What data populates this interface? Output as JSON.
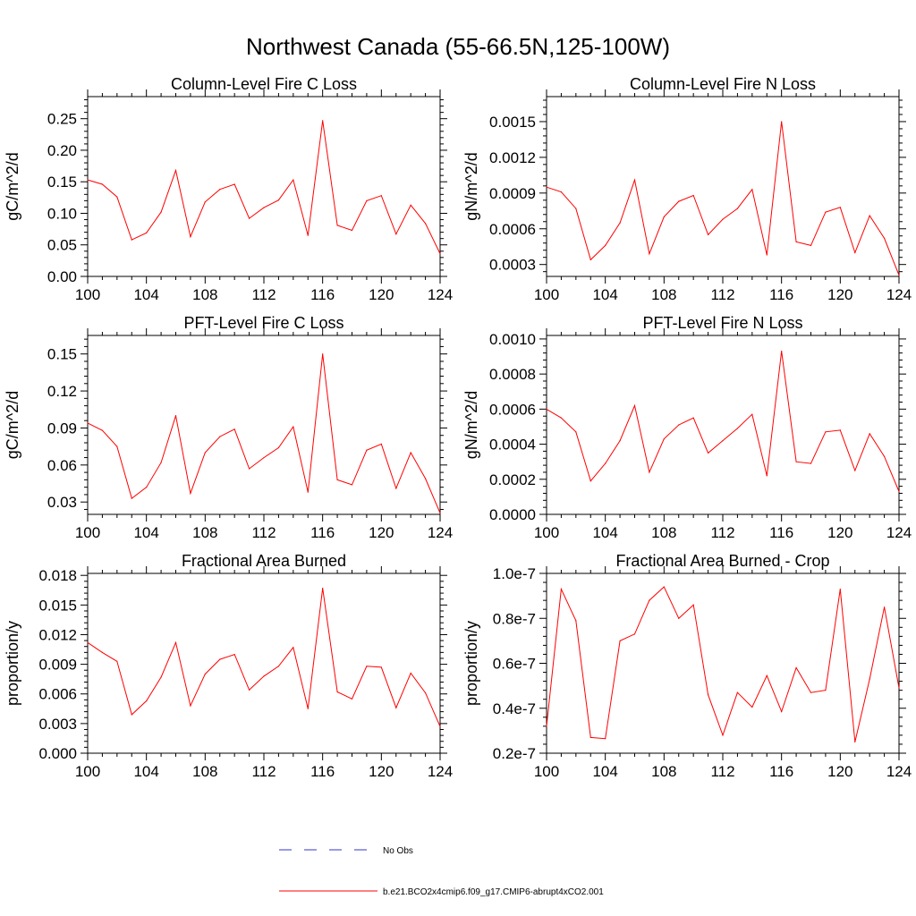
{
  "figure": {
    "title": "Northwest Canada (55-66.5N,125-100W)",
    "legend": [
      {
        "label": "No Obs",
        "color": "#3333cc",
        "style": "dashed"
      },
      {
        "label": "b.e21.BCO2x4cmip6.f09_g17.CMIP6-abrupt4xCO2.001",
        "color": "#ff0000",
        "style": "solid"
      }
    ]
  },
  "chart_data": [
    {
      "type": "line",
      "title": "Column-Level Fire C Loss",
      "ylabel": "gC/m^2/d",
      "xlim": [
        100,
        124
      ],
      "ylim": [
        0,
        0.285
      ],
      "x_ticks": [
        "100",
        "104",
        "108",
        "112",
        "116",
        "120",
        "124"
      ],
      "y_ticks": [
        "0.00",
        "0.05",
        "0.10",
        "0.15",
        "0.20",
        "0.25"
      ],
      "y_tick_values": [
        0,
        0.05,
        0.1,
        0.15,
        0.2,
        0.25
      ],
      "x": [
        100,
        101,
        102,
        103,
        104,
        105,
        106,
        107,
        108,
        109,
        110,
        111,
        112,
        113,
        114,
        115,
        116,
        117,
        118,
        119,
        120,
        121,
        122,
        123,
        124
      ],
      "series": [
        {
          "name": "b.e21.BCO2x4cmip6.f09_g17.CMIP6-abrupt4xCO2.001",
          "color": "#ff0000",
          "values": [
            0.153,
            0.146,
            0.126,
            0.058,
            0.069,
            0.102,
            0.168,
            0.063,
            0.118,
            0.138,
            0.146,
            0.092,
            0.109,
            0.121,
            0.153,
            0.065,
            0.247,
            0.081,
            0.073,
            0.12,
            0.128,
            0.067,
            0.113,
            0.084,
            0.036
          ]
        }
      ]
    },
    {
      "type": "line",
      "title": "Column-Level Fire N Loss",
      "ylabel": "gN/m^2/d",
      "xlim": [
        100,
        124
      ],
      "ylim": [
        0.0002,
        0.00171
      ],
      "x_ticks": [
        "100",
        "104",
        "108",
        "112",
        "116",
        "120",
        "124"
      ],
      "y_ticks": [
        "0.0003",
        "0.0006",
        "0.0009",
        "0.0012",
        "0.0015"
      ],
      "y_tick_values": [
        0.0003,
        0.0006,
        0.0009,
        0.0012,
        0.0015
      ],
      "x": [
        100,
        101,
        102,
        103,
        104,
        105,
        106,
        107,
        108,
        109,
        110,
        111,
        112,
        113,
        114,
        115,
        116,
        117,
        118,
        119,
        120,
        121,
        122,
        123,
        124
      ],
      "series": [
        {
          "name": "b.e21.BCO2x4cmip6.f09_g17.CMIP6-abrupt4xCO2.001",
          "color": "#ff0000",
          "values": [
            0.00095,
            0.00091,
            0.00077,
            0.00034,
            0.00046,
            0.00065,
            0.00101,
            0.00039,
            0.0007,
            0.00083,
            0.00088,
            0.00055,
            0.00068,
            0.00077,
            0.00093,
            0.00038,
            0.0015,
            0.00049,
            0.00046,
            0.00074,
            0.00078,
            0.0004,
            0.00071,
            0.00052,
            0.00021
          ]
        }
      ]
    },
    {
      "type": "line",
      "title": "PFT-Level Fire C Loss",
      "ylabel": "gC/m^2/d",
      "xlim": [
        100,
        124
      ],
      "ylim": [
        0.02,
        0.165
      ],
      "x_ticks": [
        "100",
        "104",
        "108",
        "112",
        "116",
        "120",
        "124"
      ],
      "y_ticks": [
        "0.03",
        "0.06",
        "0.09",
        "0.12",
        "0.15"
      ],
      "y_tick_values": [
        0.03,
        0.06,
        0.09,
        0.12,
        0.15
      ],
      "x": [
        100,
        101,
        102,
        103,
        104,
        105,
        106,
        107,
        108,
        109,
        110,
        111,
        112,
        113,
        114,
        115,
        116,
        117,
        118,
        119,
        120,
        121,
        122,
        123,
        124
      ],
      "series": [
        {
          "name": "b.e21.BCO2x4cmip6.f09_g17.CMIP6-abrupt4xCO2.001",
          "color": "#ff0000",
          "values": [
            0.094,
            0.088,
            0.075,
            0.033,
            0.042,
            0.062,
            0.1,
            0.037,
            0.07,
            0.083,
            0.089,
            0.057,
            0.066,
            0.074,
            0.091,
            0.038,
            0.15,
            0.048,
            0.044,
            0.072,
            0.077,
            0.041,
            0.07,
            0.049,
            0.021
          ]
        }
      ]
    },
    {
      "type": "line",
      "title": "PFT-Level Fire N Loss",
      "ylabel": "gN/m^2/d",
      "xlim": [
        100,
        124
      ],
      "ylim": [
        0,
        0.00102
      ],
      "x_ticks": [
        "100",
        "104",
        "108",
        "112",
        "116",
        "120",
        "124"
      ],
      "y_ticks": [
        "0.0000",
        "0.0002",
        "0.0004",
        "0.0006",
        "0.0008",
        "0.0010"
      ],
      "y_tick_values": [
        0,
        0.0002,
        0.0004,
        0.0006,
        0.0008,
        0.001
      ],
      "x": [
        100,
        101,
        102,
        103,
        104,
        105,
        106,
        107,
        108,
        109,
        110,
        111,
        112,
        113,
        114,
        115,
        116,
        117,
        118,
        119,
        120,
        121,
        122,
        123,
        124
      ],
      "series": [
        {
          "name": "b.e21.BCO2x4cmip6.f09_g17.CMIP6-abrupt4xCO2.001",
          "color": "#ff0000",
          "values": [
            0.0006,
            0.00055,
            0.00047,
            0.00019,
            0.00029,
            0.00042,
            0.00062,
            0.00024,
            0.00043,
            0.00051,
            0.00055,
            0.00035,
            0.00042,
            0.00049,
            0.00057,
            0.00022,
            0.00093,
            0.0003,
            0.00029,
            0.00047,
            0.00048,
            0.00025,
            0.00046,
            0.00033,
            0.00013
          ]
        }
      ]
    },
    {
      "type": "line",
      "title": "Fractional Area Burned",
      "ylabel": "proportion/y",
      "xlim": [
        100,
        124
      ],
      "ylim": [
        0,
        0.0182
      ],
      "x_ticks": [
        "100",
        "104",
        "108",
        "112",
        "116",
        "120",
        "124"
      ],
      "y_ticks": [
        "0.000",
        "0.003",
        "0.006",
        "0.009",
        "0.012",
        "0.015",
        "0.018"
      ],
      "y_tick_values": [
        0,
        0.003,
        0.006,
        0.009,
        0.012,
        0.015,
        0.018
      ],
      "x": [
        100,
        101,
        102,
        103,
        104,
        105,
        106,
        107,
        108,
        109,
        110,
        111,
        112,
        113,
        114,
        115,
        116,
        117,
        118,
        119,
        120,
        121,
        122,
        123,
        124
      ],
      "series": [
        {
          "name": "b.e21.BCO2x4cmip6.f09_g17.CMIP6-abrupt4xCO2.001",
          "color": "#ff0000",
          "values": [
            0.0112,
            0.0102,
            0.0093,
            0.0039,
            0.0053,
            0.0077,
            0.0112,
            0.0048,
            0.008,
            0.0095,
            0.01,
            0.0064,
            0.0078,
            0.0088,
            0.0107,
            0.0045,
            0.0167,
            0.0062,
            0.0055,
            0.0088,
            0.0087,
            0.0046,
            0.0081,
            0.0061,
            0.0027
          ]
        }
      ]
    },
    {
      "type": "line",
      "title": "Fractional Area Burned - Crop",
      "ylabel": "proportion/y",
      "xlim": [
        100,
        124
      ],
      "ylim": [
        2e-08,
        1e-07
      ],
      "x_ticks": [
        "100",
        "104",
        "108",
        "112",
        "116",
        "120",
        "124"
      ],
      "y_ticks": [
        "0.2e-7",
        "0.4e-7",
        "0.6e-7",
        "0.8e-7",
        "1.0e-7"
      ],
      "y_tick_values": [
        2e-08,
        4e-08,
        6e-08,
        8e-08,
        1e-07
      ],
      "x": [
        100,
        101,
        102,
        103,
        104,
        105,
        106,
        107,
        108,
        109,
        110,
        111,
        112,
        113,
        114,
        115,
        116,
        117,
        118,
        119,
        120,
        121,
        122,
        123,
        124
      ],
      "series": [
        {
          "name": "b.e21.BCO2x4cmip6.f09_g17.CMIP6-abrupt4xCO2.001",
          "color": "#ff0000",
          "values": [
            3.2e-08,
            9.3e-08,
            7.9e-08,
            2.7e-08,
            2.65e-08,
            7e-08,
            7.3e-08,
            8.8e-08,
            9.4e-08,
            8e-08,
            8.6e-08,
            4.6e-08,
            2.8e-08,
            4.7e-08,
            4.05e-08,
            5.45e-08,
            3.85e-08,
            5.8e-08,
            4.7e-08,
            4.8e-08,
            9.3e-08,
            2.5e-08,
            5.3e-08,
            8.5e-08,
            4.9e-08
          ]
        }
      ]
    }
  ]
}
